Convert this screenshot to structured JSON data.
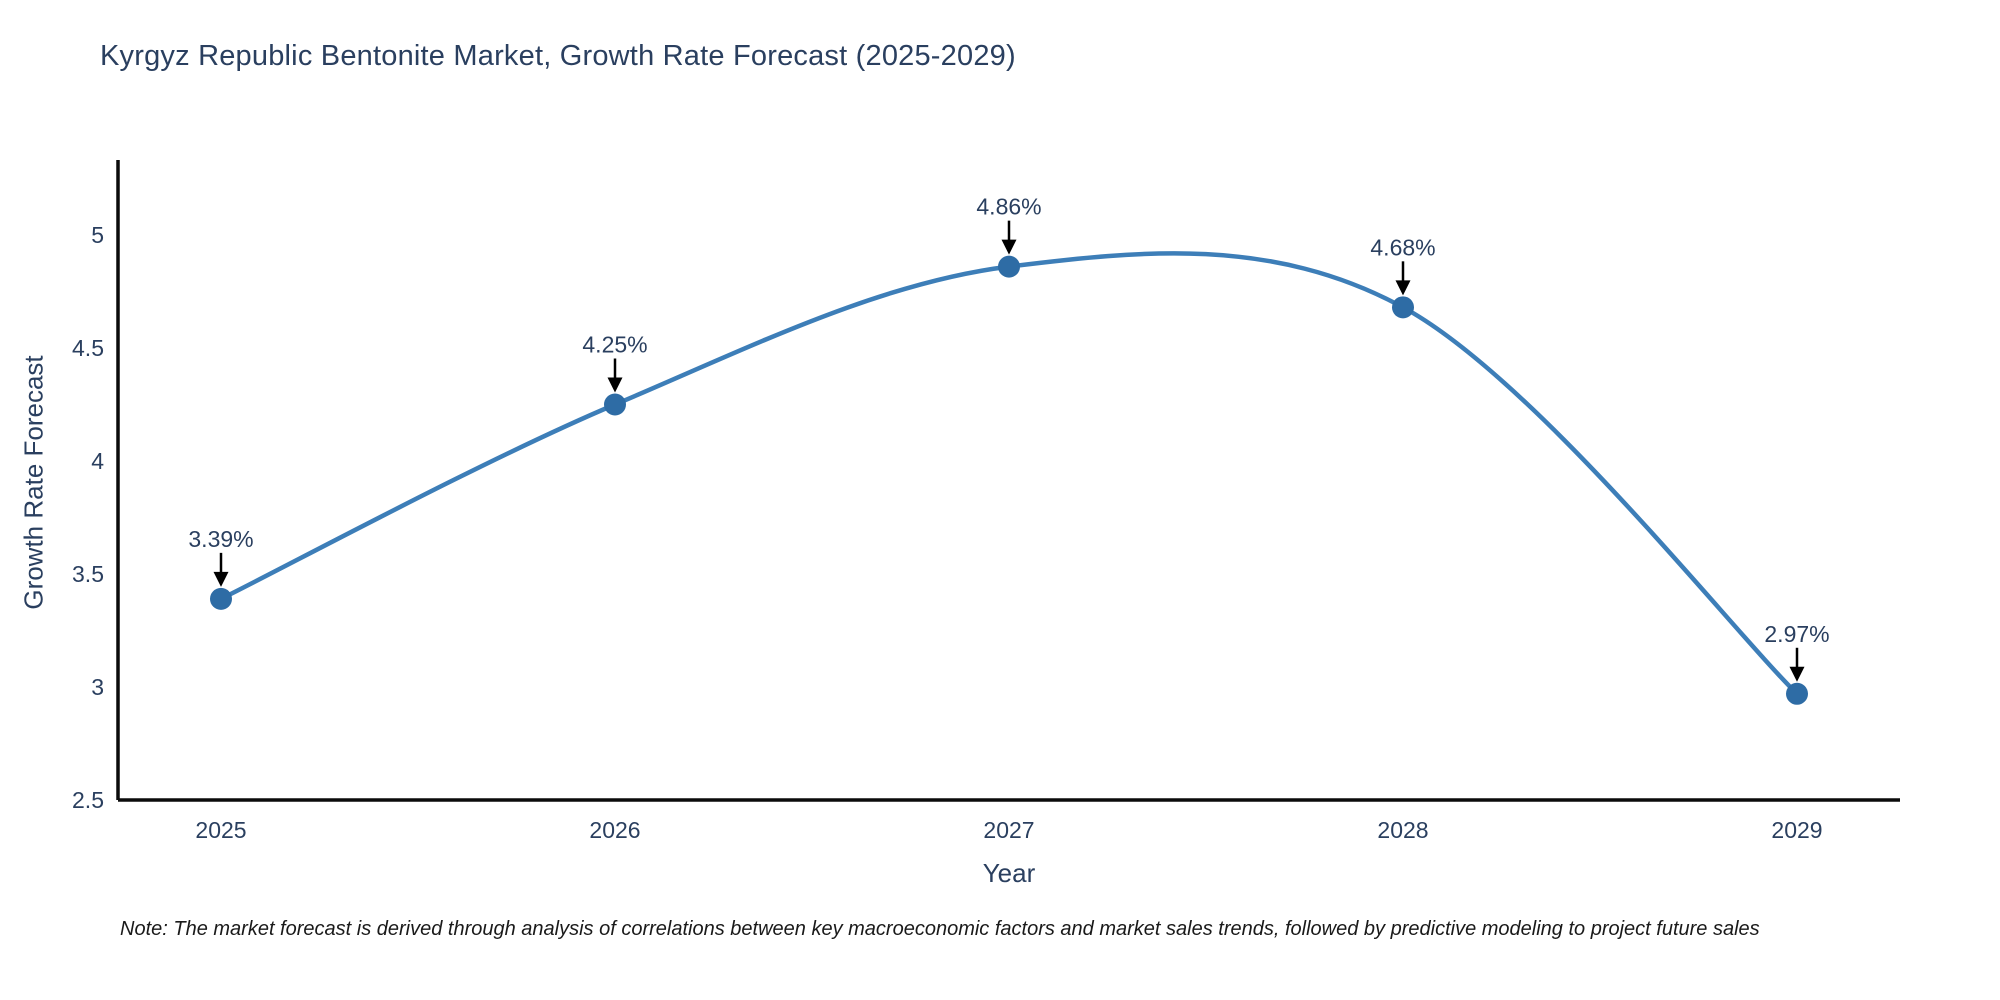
{
  "note": {
    "text": "Note: The market forecast is derived through analysis of correlations between key macroeconomic factors and market sales trends, followed by predictive modeling to project future sales"
  },
  "chart_data": {
    "type": "line",
    "line_shape": "spline",
    "title": "Kyrgyz Republic Bentonite Market, Growth Rate Forecast (2025-2029)",
    "xlabel": "Year",
    "ylabel": "Growth Rate Forecast",
    "categories": [
      "2025",
      "2026",
      "2027",
      "2028",
      "2029"
    ],
    "values": [
      3.39,
      4.25,
      4.86,
      4.68,
      2.97
    ],
    "point_labels": [
      "3.39%",
      "4.25%",
      "4.86%",
      "4.68%",
      "2.97%"
    ],
    "yticks": [
      2.5,
      3,
      3.5,
      4,
      4.5,
      5
    ],
    "ylim": [
      2.5,
      5.33
    ],
    "grid": false,
    "legend_position": "none",
    "colors": {
      "line": "#3d7eb8",
      "marker": "#2e6ca5",
      "axis": "#0b0b0b",
      "text": "#2a3f5f",
      "arrow": "#000000",
      "background": "#ffffff"
    }
  }
}
